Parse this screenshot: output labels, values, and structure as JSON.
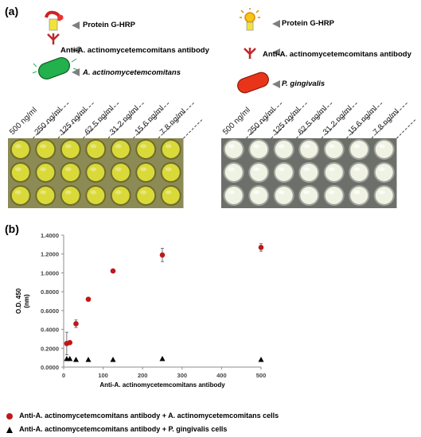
{
  "panel_a": {
    "label": "(a)",
    "left_legend": {
      "protein_label": "Protein G-HRP",
      "antibody_label": "Anti-A. actinomycetemcomitans antibody",
      "bacteria_label": "A. actinomycetemcomitans"
    },
    "right_legend": {
      "protein_label": "Protein G-HRP",
      "antibody_label": "Anti-A. actinomycetemcomitans antibody",
      "bacteria_label": "P. gingivalis"
    },
    "concentrations": [
      "500 ng/ml",
      "250 ng/ml",
      "125 ng/ml",
      "62.5 ng/ml",
      "31.2 ng/ml",
      "15.6 ng/ml",
      "7.8 ng/ml"
    ],
    "colors": {
      "left_well": "#d9d93a",
      "right_well": "#f0f2e4",
      "bacteria_green": "#22b14c",
      "bacteria_red": "#e8351a",
      "arrow_gray": "#7f7f7f"
    }
  },
  "panel_b": {
    "label": "(b)",
    "chart_data": {
      "type": "scatter",
      "xlabel": "Anti-A. actinomycetemcomitans antibody (ng/ml)",
      "ylabel": "O.D. 450 (nm)",
      "xlim": [
        0,
        500
      ],
      "ylim": [
        0,
        1.4
      ],
      "x_ticks": [
        "0",
        "100",
        "200",
        "300",
        "400",
        "500"
      ],
      "y_ticks": [
        "0.0000",
        "0.2000",
        "0.4000",
        "0.6000",
        "0.8000",
        "1.0000",
        "1.2000",
        "1.4000"
      ],
      "series": [
        {
          "name": "Anti-A. actinomycetemcomitans antibody + A. actinomycetemcomitans cells",
          "marker": "circle",
          "color": "#c0171b",
          "x": [
            7.8,
            15.6,
            31.2,
            62.5,
            125,
            250,
            500
          ],
          "y": [
            0.25,
            0.26,
            0.46,
            0.72,
            1.02,
            1.19,
            1.27
          ],
          "err": [
            0.12,
            0.01,
            0.04,
            0.01,
            0.01,
            0.07,
            0.04
          ]
        },
        {
          "name": "Anti-A. actinomycetemcomitans antibody + P. gingivalis cells",
          "marker": "triangle",
          "color": "#000000",
          "x": [
            7.8,
            15.6,
            31.2,
            62.5,
            125,
            250,
            500
          ],
          "y": [
            0.09,
            0.09,
            0.08,
            0.08,
            0.08,
            0.09,
            0.08
          ],
          "err": [
            0,
            0,
            0,
            0,
            0,
            0,
            0
          ]
        }
      ]
    }
  }
}
